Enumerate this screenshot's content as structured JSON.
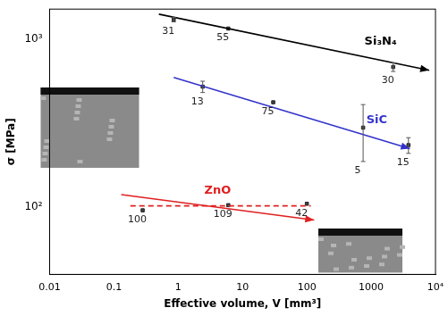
{
  "chart_data": {
    "type": "scatter",
    "log": true,
    "grid": false,
    "x_label": "Effective volume, V [mm³]",
    "y_label": "σ [MPa]",
    "xlim": [
      0.01,
      10000
    ],
    "xticks": [
      0.01,
      0.1,
      1,
      10,
      100,
      1000,
      {
        "value": 10000,
        "label": "10⁴"
      }
    ],
    "ylim": [
      40,
      1500
    ],
    "yticks": [
      {
        "value": 100,
        "label": "10²"
      },
      {
        "value": 1000,
        "label": "10³"
      }
    ],
    "series": [
      {
        "name": "Si₃N₄",
        "color": "#000000",
        "marker": "square",
        "x": [
          0.85,
          6,
          2200
        ],
        "values": [
          1300,
          1150,
          680
        ],
        "errors": [
          40,
          0,
          40
        ],
        "labels": [
          31,
          55,
          30
        ],
        "trends": [
          {
            "x": [
              0.5,
              8000
            ],
            "values": [
              1400,
              650
            ],
            "line_style": "solid",
            "marker": "arrow"
          }
        ]
      },
      {
        "name": "SiC",
        "color": "#3333cc",
        "marker": "square",
        "x": [
          2.4,
          30,
          750,
          3800
        ],
        "values": [
          520,
          420,
          297,
          234
        ],
        "errors": [
          40,
          0,
          110,
          25
        ],
        "labels": [
          13,
          75,
          5,
          15
        ],
        "trends": [
          {
            "x": [
              0.85,
              4000
            ],
            "values": [
              590,
              223
            ],
            "line_style": "solid",
            "marker": "arrow"
          }
        ]
      },
      {
        "name": "ZnO",
        "color": "#e02020",
        "marker": "square",
        "x": [
          0.28,
          6,
          100
        ],
        "values": [
          96,
          103,
          105
        ],
        "errors": [
          0,
          0,
          0
        ],
        "labels": [
          100,
          109,
          42
        ],
        "trends": [
          {
            "x": [
              0.13,
              130
            ],
            "values": [
              119,
              84
            ],
            "line_style": "solid",
            "marker": "arrow"
          },
          {
            "x": [
              0.18,
              115
            ],
            "values": [
              102,
              102
            ],
            "line_style": "dashed",
            "marker": "none"
          }
        ]
      }
    ]
  }
}
